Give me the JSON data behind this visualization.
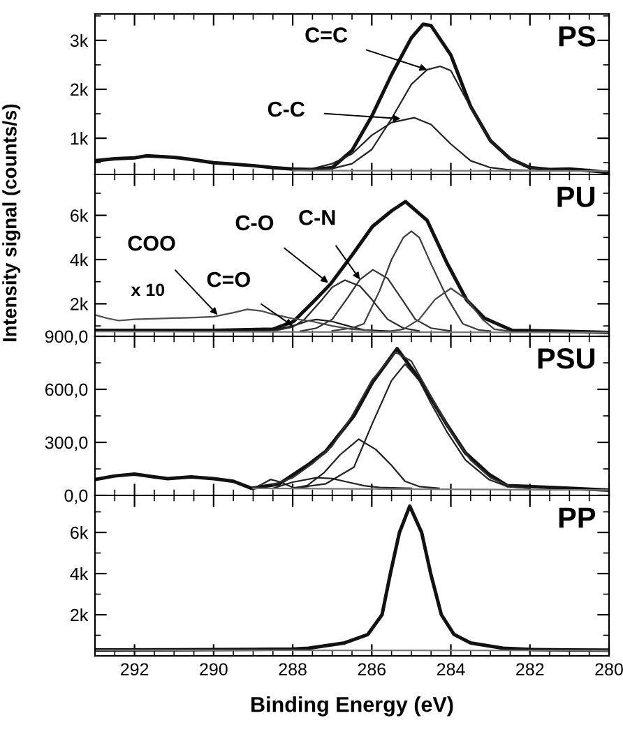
{
  "chart_data": [
    {
      "type": "line",
      "title": "PS",
      "xlim": [
        293,
        280
      ],
      "xticks": [
        292,
        290,
        288,
        286,
        284,
        282,
        280
      ],
      "ylim": [
        260,
        3540
      ],
      "yticks": [
        {
          "value": 1000,
          "label": "1k"
        },
        {
          "value": 2000,
          "label": "2k"
        },
        {
          "value": 3000,
          "label": "3k"
        }
      ],
      "tick_labels": "y",
      "grid": false,
      "legend": false,
      "marker": "none",
      "line_style": "solid",
      "annotations": [
        {
          "text": "C=C",
          "x": 284.6,
          "y": 2400
        },
        {
          "text": "C-C",
          "x": 285.27,
          "y": 1398
        }
      ],
      "series": [
        {
          "color": "#111111",
          "x": [
            293,
            292.5,
            292,
            291.7,
            291,
            290.5,
            290,
            289.5,
            289,
            288.5,
            288,
            287.5,
            287,
            286.5,
            286,
            285.5,
            285,
            284.7,
            284.5,
            284,
            283.5,
            283,
            282.5,
            282,
            281.5,
            281,
            280.5,
            280
          ],
          "values": [
            540,
            580,
            600,
            640,
            610,
            560,
            500,
            470,
            440,
            400,
            370,
            360,
            400,
            750,
            1450,
            2300,
            3050,
            3330,
            3300,
            2700,
            1650,
            950,
            580,
            400,
            360,
            370,
            340,
            300
          ]
        },
        {
          "color": "#222222",
          "x": [
            288,
            287,
            286.5,
            286,
            285.5,
            285,
            284.6,
            284.27,
            284,
            283.5,
            283,
            282.5,
            282,
            281.5,
            281
          ],
          "values": [
            340,
            380,
            480,
            770,
            1400,
            2100,
            2400,
            2470,
            2380,
            1630,
            950,
            580,
            400,
            350,
            340
          ]
        },
        {
          "color": "#222222",
          "x": [
            288,
            287.5,
            287,
            286.5,
            286,
            285.5,
            284.92,
            284.5,
            284,
            283.5,
            283,
            282.5,
            282
          ],
          "values": [
            340,
            380,
            480,
            680,
            1060,
            1320,
            1420,
            1280,
            880,
            540,
            400,
            350,
            340
          ]
        },
        {
          "color": "#777777",
          "x": [
            288,
            280
          ],
          "values": [
            340,
            330
          ]
        }
      ]
    },
    {
      "type": "line",
      "title": "PU",
      "ylabel": "Intensity signal (counts/s)",
      "xlim": [
        293,
        280
      ],
      "xticks": [
        292,
        290,
        288,
        286,
        284,
        282,
        280
      ],
      "ylim": [
        530,
        7850
      ],
      "yticks": [
        {
          "value": 2000,
          "label": "2k"
        },
        {
          "value": 4000,
          "label": "4k"
        },
        {
          "value": 6000,
          "label": "6k"
        }
      ],
      "tick_labels": "y",
      "grid": false,
      "legend": false,
      "marker": "none",
      "line_style": "solid",
      "annotations": [
        {
          "text": "COO",
          "x": 289.9,
          "y": 1500
        },
        {
          "text": "C=O",
          "x": 288.0,
          "y": 1000
        },
        {
          "text": "C-O",
          "x": 287.1,
          "y": 2950
        },
        {
          "text": "C-N",
          "x": 286.3,
          "y": 3100
        },
        "x 10"
      ],
      "series": [
        {
          "color": "#111111",
          "x": [
            293,
            290,
            288.5,
            287.98,
            287.5,
            287.04,
            286.5,
            285.98,
            285.5,
            285.15,
            284.6,
            284.1,
            283.6,
            283.15,
            282.45,
            281,
            280
          ],
          "values": [
            800,
            800,
            850,
            1200,
            2050,
            2900,
            4200,
            5500,
            6200,
            6620,
            5770,
            3850,
            2170,
            1350,
            800,
            750,
            700
          ]
        },
        {
          "color": "#1a1a1a",
          "x": [
            289,
            288.5,
            288,
            287.6,
            287.4,
            287,
            286.6,
            286.2,
            285.5
          ],
          "values": [
            760,
            800,
            1000,
            1230,
            1290,
            1200,
            1000,
            820,
            760
          ]
        },
        {
          "color": "#2a2a2a",
          "x": [
            288.5,
            288,
            287.7,
            287.3,
            287,
            286.68,
            286.3,
            286,
            285.6,
            285.2,
            284.8
          ],
          "values": [
            770,
            950,
            1300,
            2100,
            2750,
            3070,
            2800,
            2200,
            1300,
            900,
            770
          ]
        },
        {
          "color": "#333333",
          "x": [
            287.8,
            287.4,
            287,
            286.6,
            286.3,
            285.97,
            285.6,
            285.2,
            284.9,
            284.5,
            284
          ],
          "values": [
            760,
            900,
            1300,
            2300,
            3100,
            3540,
            3150,
            2100,
            1300,
            900,
            770
          ]
        },
        {
          "color": "#3c3c3c",
          "x": [
            287,
            286.5,
            286.2,
            285.8,
            285.5,
            285.2,
            285.0,
            284.8,
            284.5,
            284.1,
            283.7,
            283.3,
            283
          ],
          "values": [
            780,
            900,
            1100,
            2600,
            4000,
            5000,
            5280,
            5000,
            3800,
            2300,
            1100,
            820,
            770
          ]
        },
        {
          "color": "#444444",
          "x": [
            285.5,
            285.2,
            284.8,
            284.4,
            284.0,
            283.6,
            283.2,
            282.9,
            282.5
          ],
          "values": [
            770,
            850,
            1300,
            2200,
            2700,
            2200,
            1300,
            850,
            760
          ]
        },
        {
          "color": "#4c4c4c",
          "x": [
            293,
            292.7,
            292.4,
            292,
            291.4,
            290.5,
            290,
            289.5,
            289.15,
            288.8,
            288.5,
            288,
            287.5,
            287,
            286.5,
            286
          ],
          "values": [
            1500,
            1350,
            1240,
            1300,
            1330,
            1380,
            1420,
            1600,
            1750,
            1680,
            1530,
            1330,
            1200,
            1000,
            850,
            800
          ]
        },
        {
          "color": "#777777",
          "x": [
            293,
            280
          ],
          "values": [
            750,
            700
          ]
        }
      ]
    },
    {
      "type": "line",
      "title": "PSU",
      "xlim": [
        293,
        280
      ],
      "xticks": [
        292,
        290,
        288,
        286,
        284,
        282,
        280
      ],
      "ylim": [
        0,
        900
      ],
      "yticks": [
        {
          "value": 0,
          "label": "0,0"
        },
        {
          "value": 300,
          "label": "300,0"
        },
        {
          "value": 600,
          "label": "600,0"
        },
        {
          "value": 900,
          "label": "900,0"
        }
      ],
      "tick_labels": "y",
      "grid": false,
      "legend": false,
      "marker": "none",
      "line_style": "solid",
      "series": [
        {
          "color": "#111111",
          "x": [
            293,
            292.5,
            292,
            291.5,
            291.16,
            290.57,
            290,
            289.5,
            289.04,
            288.6,
            288.34,
            287.63,
            287.16,
            286.45,
            285.98,
            285.36,
            284.8,
            284.1,
            283.63,
            283.04,
            282.57,
            282,
            281,
            280
          ],
          "values": [
            90,
            110,
            120,
            105,
            95,
            105,
            95,
            80,
            40,
            55,
            65,
            170,
            250,
            450,
            640,
            830,
            660,
            400,
            240,
            120,
            55,
            50,
            40,
            30
          ]
        },
        {
          "color": "#333333",
          "x": [
            288.5,
            288,
            287.5,
            287,
            286.5,
            286,
            285.4,
            285,
            284.5,
            284,
            283.5,
            283,
            282.5,
            282
          ],
          "values": [
            60,
            100,
            180,
            280,
            450,
            650,
            810,
            760,
            560,
            360,
            200,
            100,
            50,
            40
          ]
        },
        {
          "color": "#222222",
          "x": [
            288,
            287.16,
            286.45,
            285.98,
            285.5,
            285.16,
            284.8,
            284.5,
            284.1,
            283.63,
            283.04,
            282.57,
            282
          ],
          "values": [
            40,
            66,
            160,
            410,
            650,
            743,
            650,
            520,
            360,
            200,
            90,
            50,
            40
          ]
        },
        {
          "color": "#222222",
          "x": [
            288,
            287.63,
            287.2,
            286.8,
            286.33,
            285.9,
            285.5,
            285.16,
            284.8,
            284.3
          ],
          "values": [
            40,
            56,
            130,
            230,
            318,
            260,
            170,
            80,
            50,
            40
          ]
        },
        {
          "color": "#222222",
          "x": [
            288.5,
            288,
            287.4,
            287,
            286.6,
            286.2,
            285.8,
            285
          ],
          "values": [
            40,
            75,
            100,
            95,
            75,
            55,
            45,
            40
          ]
        },
        {
          "color": "#222222",
          "x": [
            289,
            288.8,
            288.56,
            288.3,
            288,
            287.6
          ],
          "values": [
            40,
            60,
            90,
            75,
            45,
            40
          ]
        },
        {
          "color": "#777777",
          "x": [
            289,
            280
          ],
          "values": [
            40,
            30
          ]
        }
      ]
    },
    {
      "type": "line",
      "title": "PP",
      "xlabel": "Binding Energy (eV)",
      "xlim": [
        293,
        280
      ],
      "xticks": [
        292,
        290,
        288,
        286,
        284,
        282,
        280
      ],
      "ylim": [
        0,
        7800
      ],
      "yticks": [
        {
          "value": 2000,
          "label": "2k"
        },
        {
          "value": 4000,
          "label": "4k"
        },
        {
          "value": 6000,
          "label": "6k"
        }
      ],
      "grid": false,
      "legend": false,
      "marker": "none",
      "line_style": "solid",
      "series": [
        {
          "color": "#111111",
          "x": [
            293,
            291,
            289,
            288,
            287.6,
            286.69,
            286.1,
            285.74,
            285.53,
            285.3,
            285.04,
            284.74,
            284.51,
            284.24,
            283.92,
            283.5,
            282.68,
            282,
            281,
            280
          ],
          "values": [
            290,
            300,
            310,
            330,
            370,
            630,
            1040,
            2000,
            4000,
            6000,
            7280,
            6000,
            4000,
            2000,
            1040,
            630,
            370,
            310,
            290,
            280
          ]
        },
        {
          "color": "#777777",
          "x": [
            293,
            280
          ],
          "values": [
            280,
            260
          ]
        }
      ]
    }
  ]
}
